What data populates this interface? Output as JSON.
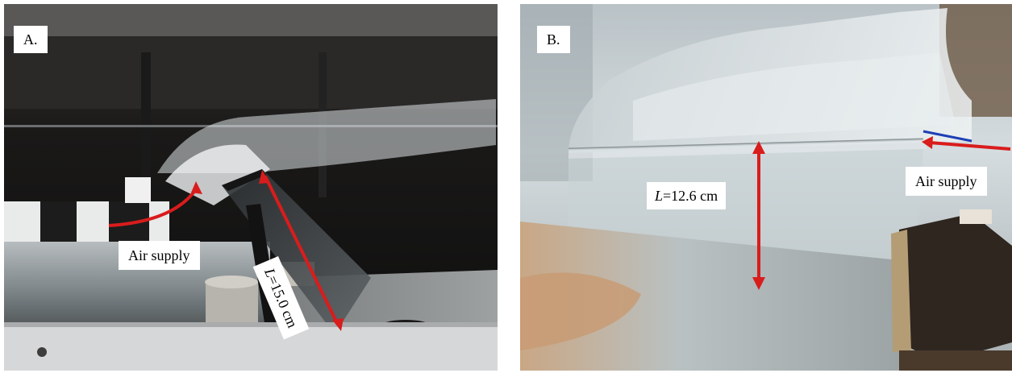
{
  "panels": [
    {
      "tag": "A.",
      "air_label": "Air supply",
      "length_symbol": "L",
      "length_value": "=15.0 cm",
      "arrow_color": "#d91c1c"
    },
    {
      "tag": "B.",
      "air_label": "Air supply",
      "length_symbol": "L",
      "length_value": "=12.6 cm",
      "arrow_color": "#d91c1c"
    }
  ]
}
